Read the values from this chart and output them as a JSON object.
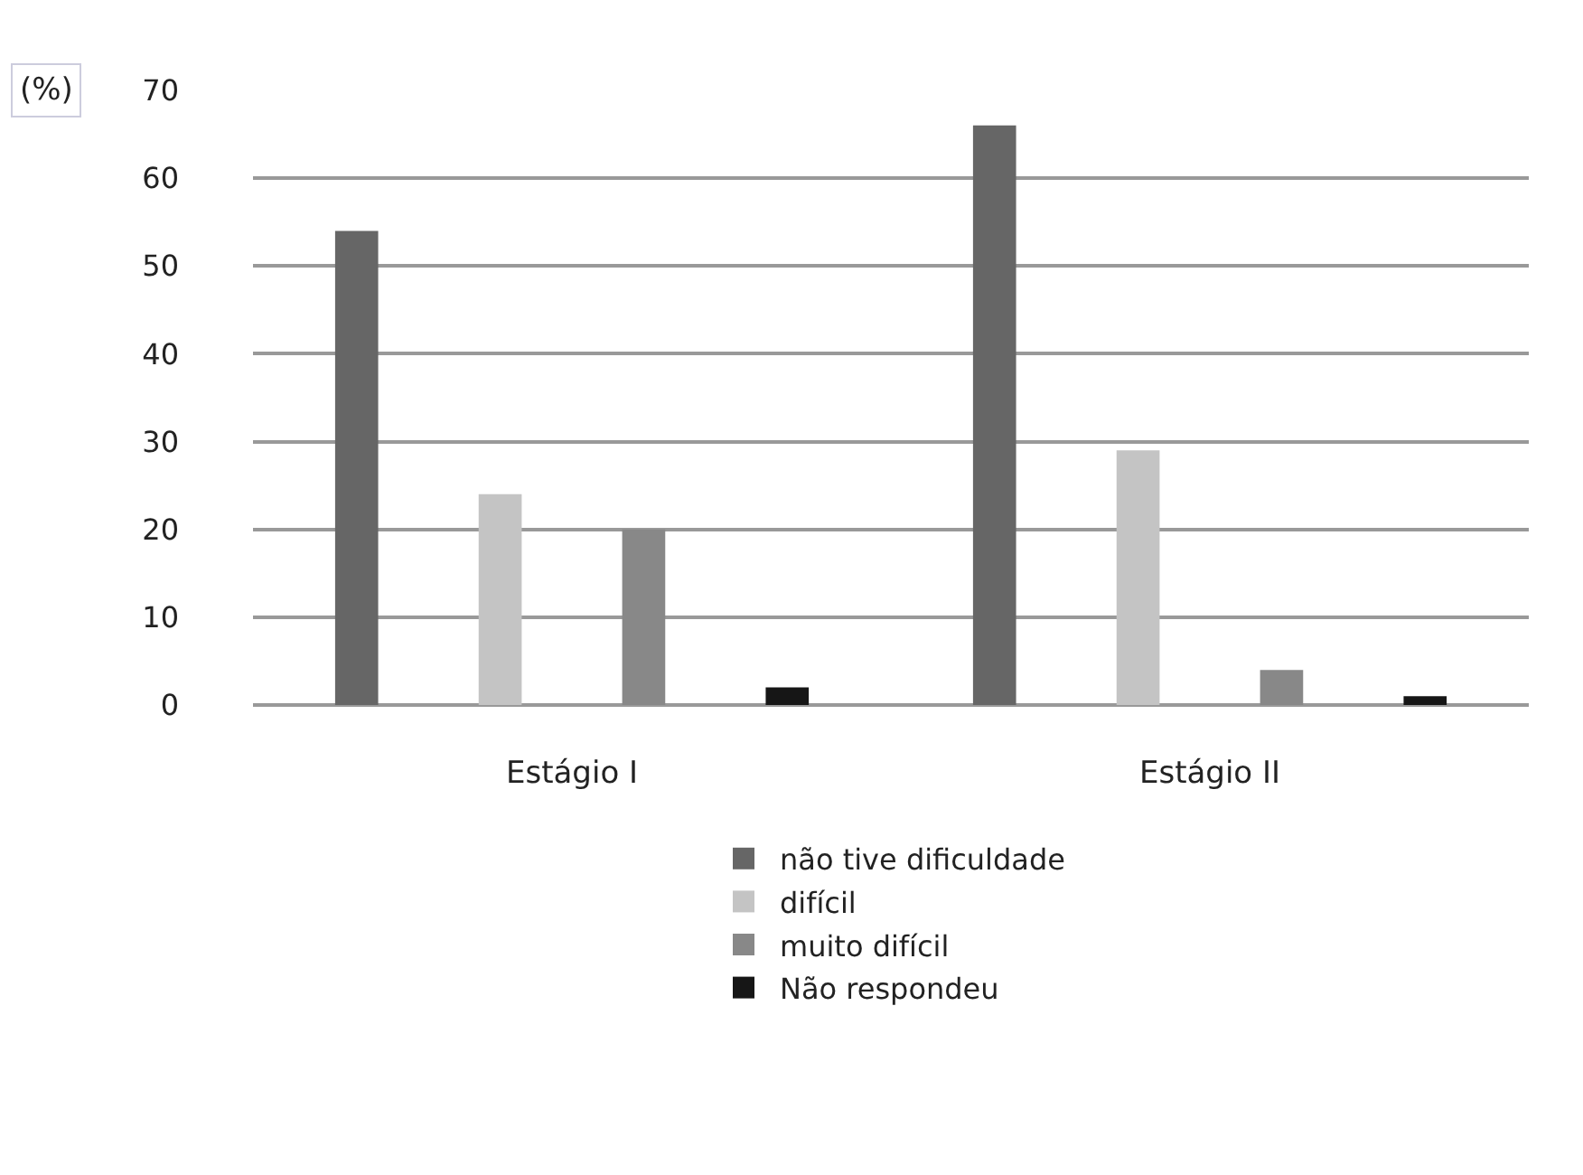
{
  "chart_data": {
    "type": "bar",
    "ylabel": "(%)",
    "categories": [
      "Estágio I",
      "Estágio II"
    ],
    "series": [
      {
        "name": "não tive dificuldade",
        "color": "#666666",
        "values": [
          54,
          66
        ]
      },
      {
        "name": "difícil",
        "color": "#c4c4c4",
        "values": [
          24,
          29
        ]
      },
      {
        "name": "muito difícil",
        "color": "#888888",
        "values": [
          20,
          4
        ]
      },
      {
        "name": "Não respondeu",
        "color": "#161616",
        "values": [
          2,
          1
        ]
      }
    ],
    "ylim": [
      0,
      70
    ],
    "yticks": [
      0,
      10,
      20,
      30,
      40,
      50,
      60,
      70
    ],
    "grid": "y",
    "legend": "bottom"
  }
}
